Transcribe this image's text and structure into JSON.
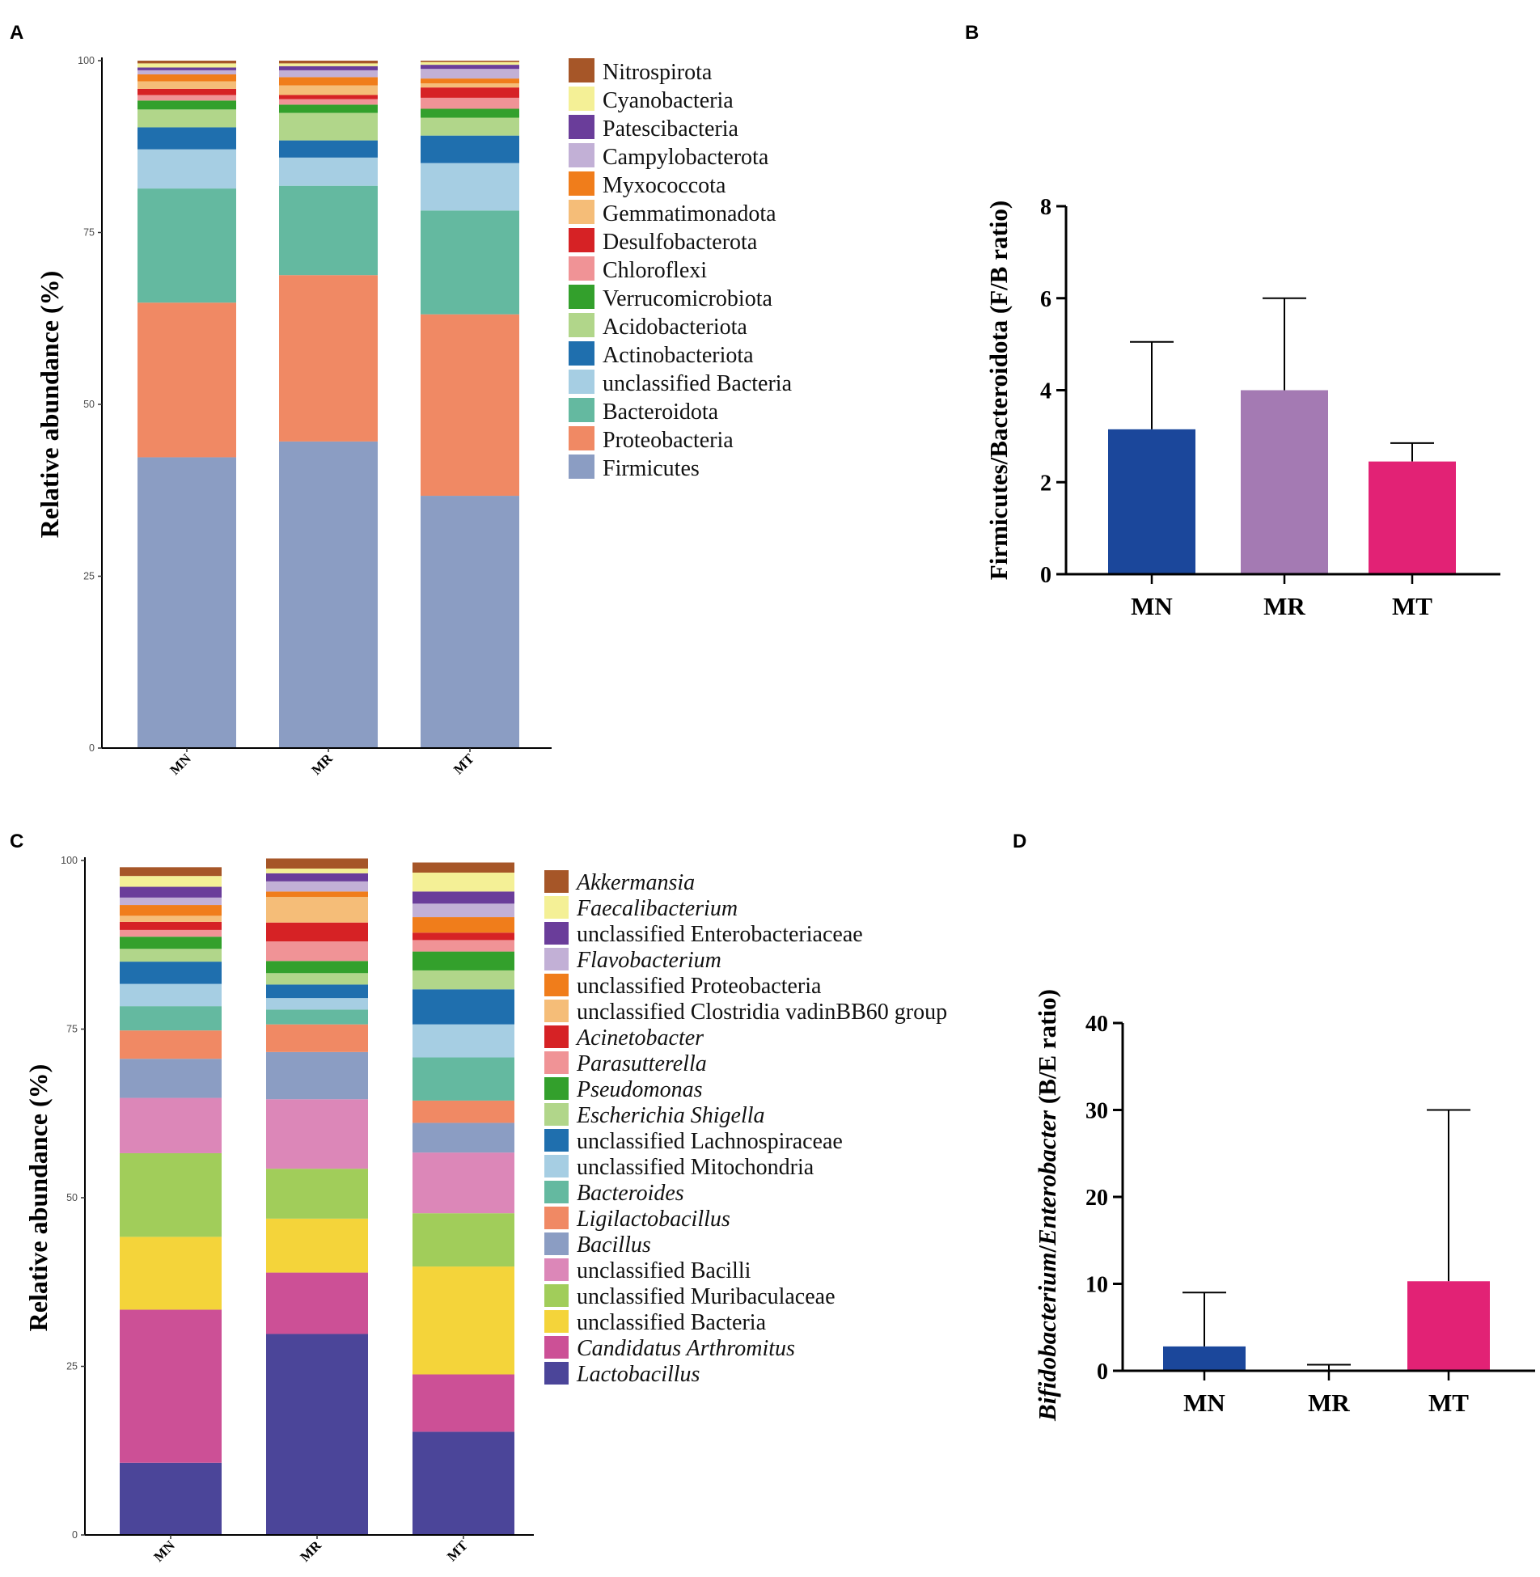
{
  "panels": {
    "A": "A",
    "B": "B",
    "C": "C",
    "D": "D"
  },
  "chart_data": [
    {
      "id": "A",
      "type": "stacked_bar",
      "ylabel": "Relative abundance (%)",
      "ylim": [
        0,
        100
      ],
      "yticks": [
        0,
        25,
        50,
        75,
        100
      ],
      "categories": [
        "MN",
        "MR",
        "MT"
      ],
      "legend": [
        {
          "name": "Nitrospirota",
          "color": "#a65628",
          "italic": false
        },
        {
          "name": "Cyanobacteria",
          "color": "#f4f096",
          "italic": false
        },
        {
          "name": "Patescibacteria",
          "color": "#6a3d9a",
          "italic": false
        },
        {
          "name": "Campylobacterota",
          "color": "#c2b0d6",
          "italic": false
        },
        {
          "name": "Myxococcota",
          "color": "#f07d1b",
          "italic": false
        },
        {
          "name": "Gemmatimonadota",
          "color": "#f5bd78",
          "italic": false
        },
        {
          "name": "Desulfobacterota",
          "color": "#d62225",
          "italic": false
        },
        {
          "name": "Chloroflexi",
          "color": "#f09396",
          "italic": false
        },
        {
          "name": "Verrucomicrobiota",
          "color": "#33a02c",
          "italic": false
        },
        {
          "name": "Acidobacteriota",
          "color": "#b1d68a",
          "italic": false
        },
        {
          "name": "Actinobacteriota",
          "color": "#1f6fae",
          "italic": false
        },
        {
          "name": "unclassified Bacteria",
          "color": "#a6cee3",
          "italic": false
        },
        {
          "name": "Bacteroidota",
          "color": "#64b9a0",
          "italic": false
        },
        {
          "name": "Proteobacteria",
          "color": "#f08964",
          "italic": false
        },
        {
          "name": "Firmicutes",
          "color": "#8b9dc3",
          "italic": false
        }
      ],
      "stack_order": [
        "Firmicutes",
        "Proteobacteria",
        "Bacteroidota",
        "unclassified Bacteria",
        "Actinobacteriota",
        "Acidobacteriota",
        "Verrucomicrobiota",
        "Chloroflexi",
        "Desulfobacterota",
        "Gemmatimonadota",
        "Myxococcota",
        "Campylobacterota",
        "Patescibacteria",
        "Cyanobacteria",
        "Nitrospirota"
      ],
      "values": {
        "MN": [
          42.3,
          22.5,
          16.6,
          5.7,
          3.2,
          2.6,
          1.3,
          0.8,
          0.9,
          1.1,
          1.0,
          0.6,
          0.4,
          0.6,
          0.4
        ],
        "MR": [
          44.6,
          24.2,
          13.0,
          4.1,
          2.5,
          4.0,
          1.2,
          0.8,
          0.6,
          1.4,
          1.2,
          1.0,
          0.6,
          0.4,
          0.4
        ],
        "MT": [
          36.7,
          26.4,
          15.1,
          6.9,
          4.0,
          2.6,
          1.3,
          1.6,
          1.5,
          0.6,
          0.7,
          1.4,
          0.6,
          0.4,
          0.2
        ]
      }
    },
    {
      "id": "B",
      "type": "bar",
      "ylabel": "Firmicutes/Bacteroidota (F/B ratio)",
      "ylim": [
        0,
        8
      ],
      "yticks": [
        0,
        2,
        4,
        6,
        8
      ],
      "categories": [
        "MN",
        "MR",
        "MT"
      ],
      "values": [
        3.15,
        4.0,
        2.45
      ],
      "errors_upper": [
        5.05,
        6.0,
        2.85
      ],
      "colors": [
        "#1b479b",
        "#a47ab3",
        "#e22275"
      ]
    },
    {
      "id": "C",
      "type": "stacked_bar",
      "ylabel": "Relative abundance (%)",
      "ylim": [
        0,
        100
      ],
      "yticks": [
        0,
        25,
        50,
        75,
        100
      ],
      "categories": [
        "MN",
        "MR",
        "MT"
      ],
      "legend": [
        {
          "name": "Akkermansia",
          "color": "#a65628",
          "italic": true
        },
        {
          "name": "Faecalibacterium",
          "color": "#f4f096",
          "italic": true
        },
        {
          "name": "unclassified Enterobacteriaceae",
          "color": "#6a3d9a",
          "italic": false
        },
        {
          "name": "Flavobacterium",
          "color": "#c2b0d6",
          "italic": true
        },
        {
          "name": "unclassified Proteobacteria",
          "color": "#f07d1b",
          "italic": false
        },
        {
          "name": "unclassified Clostridia vadinBB60 group",
          "color": "#f5bd78",
          "italic": false
        },
        {
          "name": "Acinetobacter",
          "color": "#d62225",
          "italic": true
        },
        {
          "name": "Parasutterella",
          "color": "#f09396",
          "italic": true
        },
        {
          "name": "Pseudomonas",
          "color": "#33a02c",
          "italic": true
        },
        {
          "name": "Escherichia Shigella",
          "color": "#b1d68a",
          "italic": true
        },
        {
          "name": "unclassified Lachnospiraceae",
          "color": "#1f6fae",
          "italic": false
        },
        {
          "name": "unclassified Mitochondria",
          "color": "#a6cee3",
          "italic": false
        },
        {
          "name": "Bacteroides",
          "color": "#64b9a0",
          "italic": true
        },
        {
          "name": "Ligilactobacillus",
          "color": "#f08964",
          "italic": true
        },
        {
          "name": "Bacillus",
          "color": "#8b9dc3",
          "italic": true
        },
        {
          "name": "unclassified Bacilli",
          "color": "#dc87b8",
          "italic": false
        },
        {
          "name": "unclassified Muribaculaceae",
          "color": "#a1cd5a",
          "italic": false
        },
        {
          "name": "unclassified Bacteria",
          "color": "#f4d43a",
          "italic": false
        },
        {
          "name": "Candidatus Arthromitus",
          "color": "#cc5096",
          "italic": true
        },
        {
          "name": "Lactobacillus",
          "color": "#4b4599",
          "italic": true
        }
      ],
      "stack_order": [
        "Lactobacillus",
        "Candidatus Arthromitus",
        "unclassified Bacteria",
        "unclassified Muribaculaceae",
        "unclassified Bacilli",
        "Bacillus",
        "Ligilactobacillus",
        "Bacteroides",
        "unclassified Mitochondria",
        "unclassified Lachnospiraceae",
        "Escherichia Shigella",
        "Pseudomonas",
        "Parasutterella",
        "Acinetobacter",
        "unclassified Clostridia vadinBB60 group",
        "unclassified Proteobacteria",
        "Flavobacterium",
        "unclassified Enterobacteriaceae",
        "Faecalibacterium",
        "Akkermansia"
      ],
      "values": {
        "MN": [
          10.7,
          22.7,
          10.8,
          12.4,
          8.2,
          5.8,
          4.2,
          3.6,
          3.3,
          3.3,
          1.9,
          1.8,
          1.0,
          1.2,
          0.9,
          1.6,
          1.1,
          1.6,
          1.6,
          1.3
        ],
        "MR": [
          29.8,
          9.1,
          8.0,
          7.4,
          10.3,
          7.0,
          4.1,
          2.2,
          1.7,
          2.0,
          1.7,
          1.8,
          2.9,
          2.8,
          3.8,
          0.8,
          1.5,
          1.2,
          0.7,
          1.5
        ],
        "MT": [
          15.3,
          8.5,
          16.0,
          7.9,
          9.0,
          4.4,
          3.3,
          6.4,
          4.9,
          5.2,
          2.8,
          2.8,
          1.7,
          1.1,
          0.0,
          2.3,
          2.0,
          1.8,
          2.8,
          1.5
        ]
      }
    },
    {
      "id": "D",
      "type": "bar",
      "ylabel_italic_1": "Bifidobacterium",
      "ylabel_sep": "/",
      "ylabel_italic_2": "Enterobacter",
      "ylabel_tail": " (B/E ratio)",
      "ylim": [
        0,
        40
      ],
      "yticks": [
        0,
        10,
        20,
        30,
        40
      ],
      "categories": [
        "MN",
        "MR",
        "MT"
      ],
      "values": [
        2.8,
        0.1,
        10.3
      ],
      "errors_upper": [
        9.0,
        0.7,
        30.0
      ],
      "colors": [
        "#1b479b",
        "#a47ab3",
        "#e22275"
      ]
    }
  ]
}
